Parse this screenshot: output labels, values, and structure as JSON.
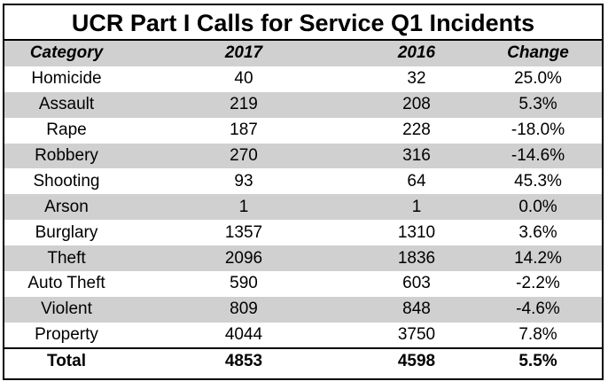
{
  "title": "UCR Part I Calls for Service Q1 Incidents",
  "columns": [
    "Category",
    "2017",
    "2016",
    "Change"
  ],
  "rows": [
    {
      "category": "Homicide",
      "y2017": "40",
      "y2016": "32",
      "change": "25.0%"
    },
    {
      "category": "Assault",
      "y2017": "219",
      "y2016": "208",
      "change": "5.3%"
    },
    {
      "category": "Rape",
      "y2017": "187",
      "y2016": "228",
      "change": "-18.0%"
    },
    {
      "category": "Robbery",
      "y2017": "270",
      "y2016": "316",
      "change": "-14.6%"
    },
    {
      "category": "Shooting",
      "y2017": "93",
      "y2016": "64",
      "change": "45.3%"
    },
    {
      "category": "Arson",
      "y2017": "1",
      "y2016": "1",
      "change": "0.0%"
    },
    {
      "category": "Burglary",
      "y2017": "1357",
      "y2016": "1310",
      "change": "3.6%"
    },
    {
      "category": "Theft",
      "y2017": "2096",
      "y2016": "1836",
      "change": "14.2%"
    },
    {
      "category": "Auto Theft",
      "y2017": "590",
      "y2016": "603",
      "change": "-2.2%"
    },
    {
      "category": "Violent",
      "y2017": "809",
      "y2016": "848",
      "change": "-4.6%"
    },
    {
      "category": "Property",
      "y2017": "4044",
      "y2016": "3750",
      "change": "7.8%"
    }
  ],
  "total": {
    "category": "Total",
    "y2017": "4853",
    "y2016": "4598",
    "change": "5.5%"
  },
  "colors": {
    "shade": "#d0d0d0",
    "border": "#000000"
  }
}
